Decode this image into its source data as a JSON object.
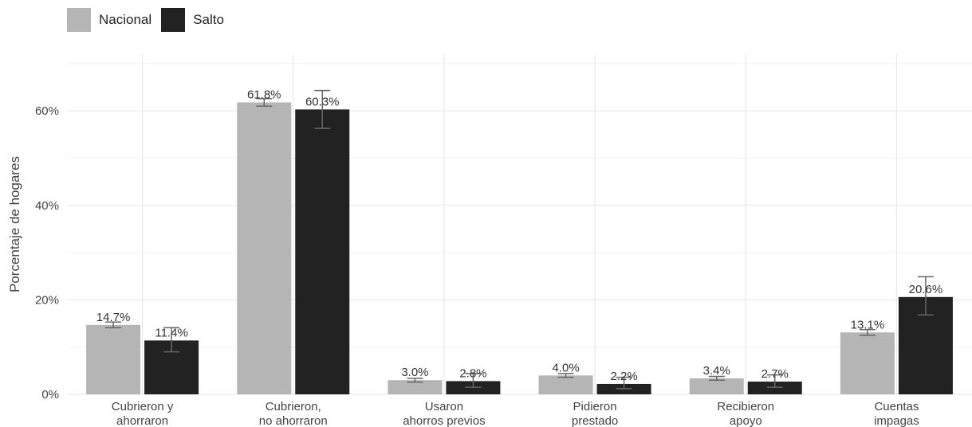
{
  "chart_data": {
    "type": "bar",
    "ylabel": "Porcentaje de hogares",
    "xlabel": "",
    "ylim": [
      0,
      0.72
    ],
    "yticks": [
      0,
      0.2,
      0.4,
      0.6
    ],
    "ytick_labels": [
      "0%",
      "20%",
      "40%",
      "60%"
    ],
    "grid": true,
    "legend_position": "top-left",
    "categories": [
      [
        "Cubrieron y",
        "ahorraron"
      ],
      [
        "Cubrieron,",
        "no ahorraron"
      ],
      [
        "Usaron",
        "ahorros previos"
      ],
      [
        "Pidieron",
        "prestado"
      ],
      [
        "Recibieron",
        "apoyo"
      ],
      [
        "Cuentas",
        "impagas"
      ]
    ],
    "series": [
      {
        "name": "Nacional",
        "color": "#b5b5b5",
        "values": [
          0.147,
          0.618,
          0.03,
          0.04,
          0.034,
          0.131
        ],
        "labels": [
          "14.7%",
          "61.8%",
          "3.0%",
          "4.0%",
          "3.4%",
          "13.1%"
        ],
        "err_low": [
          0.141,
          0.61,
          0.026,
          0.036,
          0.03,
          0.125
        ],
        "err_high": [
          0.153,
          0.626,
          0.034,
          0.044,
          0.038,
          0.137
        ]
      },
      {
        "name": "Salto",
        "color": "#222222",
        "values": [
          0.114,
          0.603,
          0.028,
          0.022,
          0.027,
          0.206
        ],
        "labels": [
          "11.4%",
          "60.3%",
          "2.8%",
          "2.2%",
          "2.7%",
          "20.6%"
        ],
        "err_low": [
          0.09,
          0.563,
          0.015,
          0.012,
          0.015,
          0.168
        ],
        "err_high": [
          0.141,
          0.643,
          0.044,
          0.036,
          0.041,
          0.249
        ]
      }
    ]
  }
}
